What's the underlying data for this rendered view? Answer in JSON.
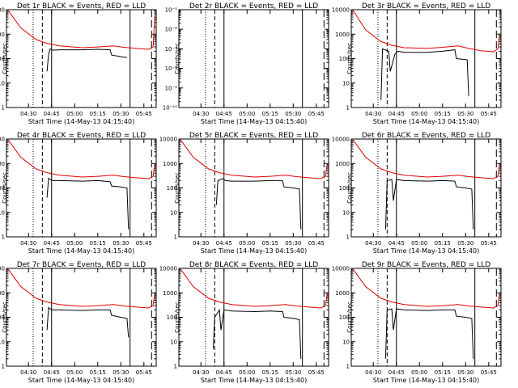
{
  "chart_data": [
    {
      "type": "line",
      "title": "Det 1r BLACK = Events, RED = LLD",
      "xlabel": "Start Time (14-May-13 04:15:40)",
      "ylabel": "Counts/sec",
      "yscale": "log",
      "ylim": [
        1,
        10000
      ],
      "yticks": [
        "1",
        "10",
        "100",
        "1000",
        "10000"
      ],
      "xlim": [
        "04:15:40",
        "05:53:00"
      ],
      "xticks": [
        "04:30",
        "04:45",
        "05:00",
        "05:15",
        "05:30",
        "05:45"
      ],
      "grid": false,
      "series": [
        {
          "name": "RED",
          "color": "#e00000",
          "x": [
            "04:17",
            "04:25",
            "04:35",
            "04:42",
            "04:50",
            "05:05",
            "05:15",
            "05:25",
            "05:32",
            "05:40",
            "05:48",
            "05:51",
            "05:52"
          ],
          "y": [
            9000,
            1800,
            600,
            420,
            330,
            280,
            300,
            330,
            290,
            260,
            240,
            300,
            5000
          ]
        },
        {
          "name": "BLACK",
          "color": "#000000",
          "x": [
            "04:42",
            "04:43",
            "04:44",
            "04:46",
            "04:50",
            "05:05",
            "05:15",
            "05:23",
            "05:24",
            "05:30",
            "05:34"
          ],
          "y": [
            30,
            150,
            250,
            220,
            230,
            230,
            240,
            230,
            140,
            120,
            110
          ]
        }
      ],
      "vlines": [
        {
          "x": "04:33",
          "style": "dotted"
        },
        {
          "x": "04:39",
          "style": "dashed"
        },
        {
          "x": "04:45",
          "style": "solid"
        },
        {
          "x": "05:36",
          "style": "solid"
        },
        {
          "x": "05:50",
          "style": "longdash"
        }
      ]
    },
    {
      "type": "line",
      "title": "Det 2r BLACK = Events, RED = LLD",
      "xlabel": "Start Time (14-May-13 04:15:40)",
      "ylabel": "Counts/sec",
      "yscale": "log",
      "ylim": [
        1e-10,
        1e-05
      ],
      "yticks": [
        "10⁻¹⁰",
        "10⁻⁹",
        "10⁻⁸",
        "10⁻⁷",
        "10⁻⁶",
        "10⁻⁵"
      ],
      "xlim": [
        "04:15:40",
        "05:53:00"
      ],
      "xticks": [
        "04:30",
        "04:45",
        "05:00",
        "05:15",
        "05:30",
        "05:45"
      ],
      "grid": false,
      "series": [],
      "vlines": [
        {
          "x": "04:33",
          "style": "dotted"
        },
        {
          "x": "04:39",
          "style": "dashed"
        },
        {
          "x": "04:45",
          "style": "solid"
        },
        {
          "x": "05:36",
          "style": "solid"
        },
        {
          "x": "05:50",
          "style": "longdash"
        }
      ]
    },
    {
      "type": "line",
      "title": "Det 3r BLACK = Events, RED = LLD",
      "xlabel": "Start Time (14-May-13 04:15:40)",
      "ylabel": "Counts/sec",
      "yscale": "log",
      "ylim": [
        1,
        10000
      ],
      "yticks": [
        "1",
        "10",
        "100",
        "1000",
        "10000"
      ],
      "xlim": [
        "04:15:40",
        "05:53:00"
      ],
      "xticks": [
        "04:30",
        "04:45",
        "05:00",
        "05:15",
        "05:30",
        "05:45"
      ],
      "grid": false,
      "series": [
        {
          "name": "RED",
          "color": "#e00000",
          "x": [
            "04:17",
            "04:25",
            "04:35",
            "04:42",
            "04:50",
            "05:05",
            "05:15",
            "05:25",
            "05:32",
            "05:40",
            "05:48",
            "05:51",
            "05:52"
          ],
          "y": [
            9000,
            1500,
            500,
            350,
            280,
            260,
            290,
            330,
            260,
            210,
            190,
            250,
            900
          ]
        },
        {
          "name": "BLACK",
          "color": "#000000",
          "x": [
            "04:35",
            "04:36",
            "04:40",
            "04:41",
            "04:44",
            "04:46",
            "04:50",
            "05:05",
            "05:15",
            "05:23",
            "05:24",
            "05:31",
            "05:32"
          ],
          "y": [
            2,
            250,
            200,
            30,
            150,
            200,
            180,
            180,
            200,
            230,
            100,
            90,
            3
          ]
        }
      ],
      "vlines": [
        {
          "x": "04:33",
          "style": "dotted"
        },
        {
          "x": "04:39",
          "style": "dashed"
        },
        {
          "x": "04:45",
          "style": "solid"
        },
        {
          "x": "05:36",
          "style": "solid"
        },
        {
          "x": "05:50",
          "style": "longdash"
        }
      ]
    },
    {
      "type": "line",
      "title": "Det 4r BLACK = Events, RED = LLD",
      "xlabel": "Start Time (14-May-13 04:15:40)",
      "ylabel": "Counts/sec",
      "yscale": "log",
      "ylim": [
        1,
        10000
      ],
      "yticks": [
        "1",
        "10",
        "100",
        "1000",
        "10000"
      ],
      "xlim": [
        "04:15:40",
        "05:53:00"
      ],
      "xticks": [
        "04:30",
        "04:45",
        "05:00",
        "05:15",
        "05:30",
        "05:45"
      ],
      "grid": false,
      "series": [
        {
          "name": "RED",
          "color": "#e00000",
          "x": [
            "04:17",
            "04:25",
            "04:35",
            "04:42",
            "04:50",
            "05:05",
            "05:15",
            "05:25",
            "05:32",
            "05:40",
            "05:48",
            "05:51",
            "05:52"
          ],
          "y": [
            9000,
            1800,
            600,
            420,
            330,
            280,
            300,
            330,
            290,
            260,
            240,
            300,
            900
          ]
        },
        {
          "name": "BLACK",
          "color": "#000000",
          "x": [
            "04:42",
            "04:43",
            "04:44",
            "04:46",
            "04:50",
            "05:05",
            "05:15",
            "05:23",
            "05:24",
            "05:30",
            "05:34",
            "05:35"
          ],
          "y": [
            40,
            250,
            220,
            200,
            200,
            190,
            200,
            180,
            120,
            110,
            100,
            2
          ]
        }
      ],
      "vlines": [
        {
          "x": "04:33",
          "style": "dotted"
        },
        {
          "x": "04:39",
          "style": "dashed"
        },
        {
          "x": "04:45",
          "style": "solid"
        },
        {
          "x": "05:36",
          "style": "solid"
        },
        {
          "x": "05:50",
          "style": "longdash"
        }
      ]
    },
    {
      "type": "line",
      "title": "Det 5r BLACK = Events, RED = LLD",
      "xlabel": "Start Time (14-May-13 04:15:40)",
      "ylabel": "Counts/sec",
      "yscale": "log",
      "ylim": [
        1,
        10000
      ],
      "yticks": [
        "1",
        "10",
        "100",
        "1000",
        "10000"
      ],
      "xlim": [
        "04:15:40",
        "05:53:00"
      ],
      "xticks": [
        "04:30",
        "04:45",
        "05:00",
        "05:15",
        "05:30",
        "05:45"
      ],
      "grid": false,
      "series": [
        {
          "name": "RED",
          "color": "#e00000",
          "x": [
            "04:17",
            "04:25",
            "04:35",
            "04:42",
            "04:50",
            "05:05",
            "05:15",
            "05:25",
            "05:32",
            "05:40",
            "05:48",
            "05:51",
            "05:52"
          ],
          "y": [
            9000,
            1800,
            600,
            420,
            330,
            280,
            300,
            330,
            290,
            260,
            240,
            300,
            900
          ]
        },
        {
          "name": "BLACK",
          "color": "#000000",
          "x": [
            "04:40",
            "04:41",
            "04:44",
            "04:46",
            "04:50",
            "05:05",
            "05:15",
            "05:23",
            "05:24",
            "05:30",
            "05:34",
            "05:35"
          ],
          "y": [
            20,
            200,
            240,
            200,
            190,
            190,
            200,
            200,
            110,
            100,
            90,
            2
          ]
        }
      ],
      "vlines": [
        {
          "x": "04:33",
          "style": "dotted"
        },
        {
          "x": "04:39",
          "style": "dashed"
        },
        {
          "x": "04:45",
          "style": "solid"
        },
        {
          "x": "05:36",
          "style": "solid"
        },
        {
          "x": "05:50",
          "style": "longdash"
        }
      ]
    },
    {
      "type": "line",
      "title": "Det 6r BLACK = Events, RED = LLD",
      "xlabel": "Start Time (14-May-13 04:15:40)",
      "ylabel": "Counts/sec",
      "yscale": "log",
      "ylim": [
        1,
        10000
      ],
      "yticks": [
        "1",
        "10",
        "100",
        "1000",
        "10000"
      ],
      "xlim": [
        "04:15:40",
        "05:53:00"
      ],
      "xticks": [
        "04:30",
        "04:45",
        "05:00",
        "05:15",
        "05:30",
        "05:45"
      ],
      "grid": false,
      "series": [
        {
          "name": "RED",
          "color": "#e00000",
          "x": [
            "04:17",
            "04:25",
            "04:35",
            "04:42",
            "04:50",
            "05:05",
            "05:15",
            "05:25",
            "05:32",
            "05:40",
            "05:48",
            "05:51",
            "05:52"
          ],
          "y": [
            9000,
            1800,
            600,
            420,
            330,
            280,
            300,
            330,
            290,
            260,
            240,
            300,
            900
          ]
        },
        {
          "name": "BLACK",
          "color": "#000000",
          "x": [
            "04:38",
            "04:39",
            "04:42",
            "04:43",
            "04:45",
            "04:50",
            "05:05",
            "05:15",
            "05:23",
            "05:24",
            "05:30",
            "05:34",
            "05:35"
          ],
          "y": [
            2,
            200,
            220,
            30,
            220,
            200,
            190,
            200,
            190,
            110,
            100,
            90,
            2
          ]
        }
      ],
      "vlines": [
        {
          "x": "04:33",
          "style": "dotted"
        },
        {
          "x": "04:39",
          "style": "dashed"
        },
        {
          "x": "04:45",
          "style": "solid"
        },
        {
          "x": "05:36",
          "style": "solid"
        },
        {
          "x": "05:50",
          "style": "longdash"
        }
      ]
    },
    {
      "type": "line",
      "title": "Det 7r BLACK = Events, RED = LLD",
      "xlabel": "Start Time (14-May-13 04:15:40)",
      "ylabel": "Counts/sec",
      "yscale": "log",
      "ylim": [
        1,
        10000
      ],
      "yticks": [
        "1",
        "10",
        "100",
        "1000",
        "10000"
      ],
      "xlim": [
        "04:15:40",
        "05:53:00"
      ],
      "xticks": [
        "04:30",
        "04:45",
        "05:00",
        "05:15",
        "05:30",
        "05:45"
      ],
      "grid": false,
      "series": [
        {
          "name": "RED",
          "color": "#e00000",
          "x": [
            "04:17",
            "04:25",
            "04:35",
            "04:42",
            "04:50",
            "05:05",
            "05:15",
            "05:25",
            "05:32",
            "05:40",
            "05:48",
            "05:51",
            "05:52"
          ],
          "y": [
            9000,
            1800,
            600,
            420,
            330,
            280,
            300,
            330,
            290,
            260,
            240,
            300,
            900
          ]
        },
        {
          "name": "BLACK",
          "color": "#000000",
          "x": [
            "04:42",
            "04:43",
            "04:44",
            "04:46",
            "04:50",
            "05:05",
            "05:15",
            "05:23",
            "05:24",
            "05:30",
            "05:34",
            "05:35"
          ],
          "y": [
            30,
            250,
            220,
            200,
            200,
            190,
            200,
            200,
            120,
            100,
            90,
            15
          ]
        }
      ],
      "vlines": [
        {
          "x": "04:33",
          "style": "dotted"
        },
        {
          "x": "04:39",
          "style": "dashed"
        },
        {
          "x": "04:45",
          "style": "solid"
        },
        {
          "x": "05:36",
          "style": "solid"
        },
        {
          "x": "05:50",
          "style": "longdash"
        }
      ]
    },
    {
      "type": "line",
      "title": "Det 8r BLACK = Events, RED = LLD",
      "xlabel": "Start Time (14-May-13 04:15:40)",
      "ylabel": "Counts/sec",
      "yscale": "log",
      "ylim": [
        1,
        10000
      ],
      "yticks": [
        "1",
        "10",
        "100",
        "1000",
        "10000"
      ],
      "xlim": [
        "04:15:40",
        "05:53:00"
      ],
      "xticks": [
        "04:30",
        "04:45",
        "05:00",
        "05:15",
        "05:30",
        "05:45"
      ],
      "grid": false,
      "series": [
        {
          "name": "RED",
          "color": "#e00000",
          "x": [
            "04:17",
            "04:25",
            "04:35",
            "04:42",
            "04:50",
            "05:05",
            "05:15",
            "05:25",
            "05:32",
            "05:40",
            "05:48",
            "05:51",
            "05:52"
          ],
          "y": [
            9000,
            1800,
            600,
            420,
            330,
            280,
            300,
            330,
            290,
            260,
            240,
            300,
            900
          ]
        },
        {
          "name": "BLACK",
          "color": "#000000",
          "x": [
            "04:38",
            "04:39",
            "04:42",
            "04:43",
            "04:45",
            "04:50",
            "05:05",
            "05:15",
            "05:23",
            "05:24",
            "05:30",
            "05:34",
            "05:35"
          ],
          "y": [
            5,
            100,
            200,
            30,
            200,
            180,
            170,
            180,
            170,
            100,
            90,
            80,
            2
          ]
        }
      ],
      "vlines": [
        {
          "x": "04:33",
          "style": "dotted"
        },
        {
          "x": "04:39",
          "style": "dashed"
        },
        {
          "x": "04:45",
          "style": "solid"
        },
        {
          "x": "05:36",
          "style": "solid"
        },
        {
          "x": "05:50",
          "style": "longdash"
        }
      ]
    },
    {
      "type": "line",
      "title": "Det 9r BLACK = Events, RED = LLD",
      "xlabel": "Start Time (14-May-13 04:15:40)",
      "ylabel": "Counts/sec",
      "yscale": "log",
      "ylim": [
        1,
        10000
      ],
      "yticks": [
        "1",
        "10",
        "100",
        "1000",
        "10000"
      ],
      "xlim": [
        "04:15:40",
        "05:53:00"
      ],
      "xticks": [
        "04:30",
        "04:45",
        "05:00",
        "05:15",
        "05:30",
        "05:45"
      ],
      "grid": false,
      "series": [
        {
          "name": "RED",
          "color": "#e00000",
          "x": [
            "04:17",
            "04:25",
            "04:35",
            "04:42",
            "04:50",
            "05:05",
            "05:15",
            "05:25",
            "05:32",
            "05:40",
            "05:48",
            "05:51",
            "05:52"
          ],
          "y": [
            9000,
            1800,
            600,
            420,
            330,
            280,
            300,
            330,
            290,
            260,
            240,
            300,
            900
          ]
        },
        {
          "name": "BLACK",
          "color": "#000000",
          "x": [
            "04:38",
            "04:39",
            "04:42",
            "04:43",
            "04:45",
            "04:50",
            "05:05",
            "05:15",
            "05:23",
            "05:24",
            "05:30",
            "05:34",
            "05:35"
          ],
          "y": [
            2,
            200,
            220,
            30,
            220,
            200,
            190,
            200,
            200,
            110,
            100,
            90,
            2
          ]
        }
      ],
      "vlines": [
        {
          "x": "04:33",
          "style": "dotted"
        },
        {
          "x": "04:39",
          "style": "dashed"
        },
        {
          "x": "04:45",
          "style": "solid"
        },
        {
          "x": "05:36",
          "style": "solid"
        },
        {
          "x": "05:50",
          "style": "longdash"
        }
      ]
    }
  ]
}
